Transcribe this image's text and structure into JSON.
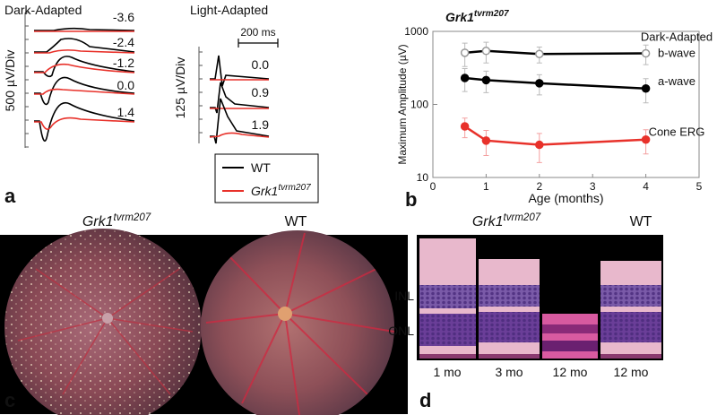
{
  "panel_a": {
    "label": "a",
    "dark_title": "Dark-Adapted",
    "light_title": "Light-Adapted",
    "dark_scale": "500 µV/Div",
    "light_scale": "125 µV/Div",
    "time_scale": "200 ms",
    "dark_intensities": [
      "-3.6",
      "-2.4",
      "-1.2",
      "0.0",
      "1.4"
    ],
    "light_intensities": [
      "0.0",
      "0.9",
      "1.9"
    ],
    "legend": [
      {
        "name": "WT",
        "color": "#000000"
      },
      {
        "name": "Grk1",
        "superscript": "tvrm207",
        "color": "#e8312a"
      }
    ]
  },
  "chart_data": {
    "type": "line",
    "panel_label": "b",
    "title": "Grk1",
    "title_superscript": "tvrm207",
    "x_label": "Age (months)",
    "y_label": "Maximum Amplitude (µV)",
    "xlim": [
      0,
      5
    ],
    "xticks": [
      0,
      1,
      2,
      3,
      4,
      5
    ],
    "ylim": [
      10,
      1000
    ],
    "yticks": [
      10,
      100,
      1000
    ],
    "log_y": true,
    "annotation": "Dark-Adapted",
    "series": [
      {
        "name": "b-wave",
        "color": "#000000",
        "marker": "open",
        "marker_color": "#999999",
        "error_color": "#bbbbbb",
        "x": [
          0.6,
          1,
          2,
          4
        ],
        "values": [
          510,
          540,
          490,
          500
        ],
        "errors": [
          180,
          170,
          120,
          150
        ]
      },
      {
        "name": "a-wave",
        "color": "#000000",
        "marker": "filled",
        "marker_color": "#000000",
        "error_color": "#bbbbbb",
        "x": [
          0.6,
          1,
          2,
          4
        ],
        "values": [
          230,
          215,
          195,
          165
        ],
        "errors": [
          80,
          70,
          60,
          60
        ]
      },
      {
        "name": "Cone ERG",
        "color": "#e8312a",
        "marker": "filled",
        "marker_color": "#e8312a",
        "error_color": "#f4a0a0",
        "x": [
          0.6,
          1,
          2,
          4
        ],
        "values": [
          50,
          32,
          28,
          33
        ],
        "errors": [
          15,
          12,
          12,
          12
        ]
      }
    ]
  },
  "panel_c": {
    "label": "c",
    "images": [
      {
        "title": "Grk1",
        "superscript": "tvrm207"
      },
      {
        "title": "WT"
      }
    ]
  },
  "panel_d": {
    "label": "d",
    "groups": [
      {
        "title": "Grk1",
        "superscript": "tvrm207"
      },
      {
        "title": "WT"
      }
    ],
    "layers": [
      "INL",
      "ONL"
    ],
    "ages": [
      "1 mo",
      "3 mo",
      "12 mo",
      "12 mo"
    ]
  }
}
